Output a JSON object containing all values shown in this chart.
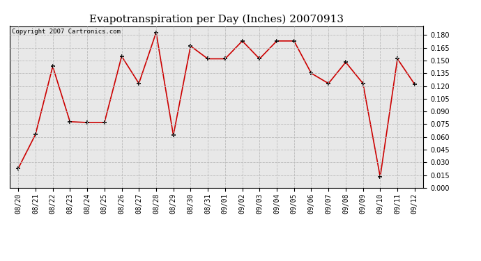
{
  "title": "Evapotranspiration per Day (Inches) 20070913",
  "copyright_text": "Copyright 2007 Cartronics.com",
  "dates": [
    "08/20",
    "08/21",
    "08/22",
    "08/23",
    "08/24",
    "08/25",
    "08/26",
    "08/27",
    "08/28",
    "08/29",
    "08/30",
    "08/31",
    "09/01",
    "09/02",
    "09/03",
    "09/04",
    "09/05",
    "09/06",
    "09/07",
    "09/08",
    "09/09",
    "09/10",
    "09/11",
    "09/12"
  ],
  "values": [
    0.023,
    0.063,
    0.143,
    0.078,
    0.077,
    0.077,
    0.155,
    0.123,
    0.183,
    0.062,
    0.167,
    0.152,
    0.152,
    0.173,
    0.152,
    0.173,
    0.173,
    0.135,
    0.123,
    0.148,
    0.123,
    0.013,
    0.152,
    0.122
  ],
  "ylim": [
    0.0,
    0.1905
  ],
  "yticks": [
    0.0,
    0.015,
    0.03,
    0.045,
    0.06,
    0.075,
    0.09,
    0.105,
    0.12,
    0.135,
    0.15,
    0.165,
    0.18
  ],
  "line_color": "#cc0000",
  "marker": "+",
  "marker_size": 5,
  "marker_lw": 1.2,
  "line_width": 1.2,
  "bg_color": "#ffffff",
  "plot_bg_color": "#e8e8e8",
  "grid_color": "#bbbbbb",
  "title_fontsize": 11,
  "tick_fontsize": 7,
  "copyright_fontsize": 6.5
}
